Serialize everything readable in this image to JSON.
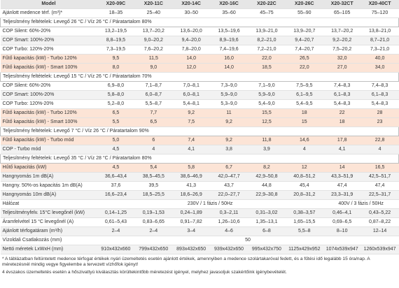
{
  "table": {
    "header": [
      "Model",
      "X20-09C",
      "X20-11C",
      "X20-14C",
      "X20-16C",
      "X20-22C",
      "X20-26C",
      "X20-32CT",
      "X20-40CT"
    ],
    "rows": [
      [
        "Ajánlott medence térf. (m³)*",
        "18–35",
        "25–40",
        "30–50",
        "35–60",
        "45–75",
        "55–90",
        "65–105",
        "75–120"
      ],
      [
        "Teljesítmény feltételek: Levegő 26 °C / Víz 26 °C / Páratartalom 80%"
      ],
      [
        "COP Silent: 60%-20%",
        "13,2–19,5",
        "13,7–20,2",
        "13,6–20,0",
        "13,5–19,6",
        "13,9–21,0",
        "13,9–20,7",
        "13,7–20,2",
        "13,8–21,0"
      ],
      [
        "COP Smart: 100%-20%",
        "8,8–19,5",
        "9,0–20,2",
        "9,4–20,0",
        "8,9–19,6",
        "8,2–21,0",
        "9,4–20,7",
        "9,2–20,2",
        "8,7–21,0"
      ],
      [
        "COP Turbo: 120%-20%",
        "7,3–19,5",
        "7,6–20,2",
        "7,8–20,0",
        "7,4–19,6",
        "7,2–21,0",
        "7,4–20,7",
        "7,5–20,2",
        "7,3–21,0"
      ],
      [
        "Fűtő kapacitás (kW) - Turbo 120%",
        "9,5",
        "11,5",
        "14,0",
        "16,0",
        "22,0",
        "26,5",
        "32,0",
        "40,0"
      ],
      [
        "Fűtő kapacitás (kW) - Smart 100%",
        "8,0",
        "9,0",
        "12,0",
        "14,0",
        "18,5",
        "22,0",
        "27,0",
        "34,0"
      ],
      [
        "Teljesítmény feltételek: Levegő 15 °C / Víz 26 °C / Páratartalom 70%"
      ],
      [
        "COP Silent: 60%-20%",
        "6,9–8,0",
        "7,1–8,7",
        "7,0–8,1",
        "7,3–9,0",
        "7,1–9,0",
        "7,5–9,5",
        "7,4–8,3",
        "7,4–8,3"
      ],
      [
        "COP Smart: 100%-20%",
        "5,8–8,0",
        "6,0–8,7",
        "6,0–8,1",
        "5,9–9,0",
        "5,9–9,0",
        "6,1–9,5",
        "6,1–8,3",
        "6,1–8,3"
      ],
      [
        "COP Turbo: 120%-20%",
        "5,2–8,0",
        "5,5–8,7",
        "5,4–8,1",
        "5,3–9,0",
        "5,4–9,0",
        "5,4–9,5",
        "5,4–8,3",
        "5,4–8,3"
      ],
      [
        "Fűtő kapacitás (kW) - Turbo 120%",
        "6,5",
        "7,7",
        "9,2",
        "11",
        "15,5",
        "18",
        "22",
        "28"
      ],
      [
        "Fűtő kapacitás (kW) - Smart 100%",
        "5,5",
        "6,5",
        "7,5",
        "9,2",
        "12,5",
        "15",
        "18",
        "23"
      ],
      [
        "Teljesítmény feltételek: Levegő 7 °C / Víz 26 °C / Páratartalom 90%"
      ],
      [
        "Fűtő kapacitás (kW) - Turbo mód",
        "5,0",
        "6",
        "7,4",
        "9,2",
        "11,8",
        "14,6",
        "17,8",
        "22,8"
      ],
      [
        "COP - Turbo mód",
        "4,5",
        "4",
        "4,1",
        "3,8",
        "3,9",
        "4",
        "4,1",
        "4"
      ],
      [
        "Teljesítmény feltételek: Levegő 35 °C / Víz 28 °C / Páratartalom 80%"
      ],
      [
        "Hűtő kapacitás (kW)",
        "4,5",
        "5,4",
        "5,8",
        "6,7",
        "8,2",
        "12",
        "14",
        "16,5"
      ],
      [
        "Hangnyomás 1m dB(A)",
        "36,6–43,4",
        "38,5–45,5",
        "38,6–46,9",
        "42,0–47,7",
        "42,9–50,8",
        "40,8–51,2",
        "43,3–51,9",
        "42,5–51,7"
      ],
      [
        "Hangny. 50%-os kapacitás 1m dB(A)",
        "37,6",
        "39,5",
        "41,3",
        "43,7",
        "44,8",
        "45,4",
        "47,4",
        "47,4"
      ],
      [
        "Hangnyomás 10m dB(A)",
        "16,6–23,4",
        "18,5–25,5",
        "18,6–26,9",
        "22,0–27,7",
        "22,9–30,8",
        "20,8–31,2",
        "23,3–31,9",
        "22,5–31,7"
      ],
      [
        "Hálózat",
        "230V / 1 fázis / 50Hz",
        "400V / 3 fázis / 50Hz"
      ],
      [
        "Teljesítményfelv. 15°C levegőnél (kW)",
        "0,14–1,25",
        "0,19–1,53",
        "0,24–1,89",
        "0,3–2,11",
        "0,31–3,02",
        "0,38–3,57",
        "0,46–4,1",
        "0,43–5,22"
      ],
      [
        "Áramfelvétel 15 °C levegőnél (A)",
        "0,61–5,43",
        "0,83–6,65",
        "0,91–7,82",
        "1,26–10,6",
        "1,35–13,1",
        "1,65–15,5",
        "0,69–6,5",
        "0,87–8,22"
      ],
      [
        "Ajánlott térfogatáram (m³/h)",
        "2–4",
        "2–4",
        "3–4",
        "4–6",
        "6–8",
        "5,5–8",
        "8–10",
        "12–14"
      ],
      [
        "Vízoldali Csatlakozás (mm)",
        "50"
      ],
      [
        "Nettó méretek LxWxH (mm)",
        "910x432x660",
        "799x432x650",
        "893x432x650",
        "939x432x650",
        "995x432x750",
        "1125x429x952",
        "1074x539x947",
        "1260x539x947"
      ]
    ]
  },
  "notes": [
    "* A táblázatban feltüntetett medence térfogat értékek nyári üzemeltetés esetén ajánlott értékek, amennyiben a medence szolártakaróval fedett, és a fűtési idő legalább 15 óra/nap. A méretezésnél mindig vegye figyelembe a tervezett vízhőfok igényt!",
    "4 évszakos üzemeltetés esetén a hőszivattyú kiválasztás körültekintőbb méretezést igényel, melyhez javasoljuk szakértőink igénybevételét."
  ]
}
